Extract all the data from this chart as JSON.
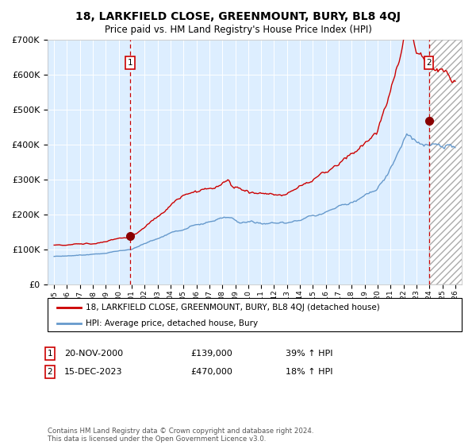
{
  "title": "18, LARKFIELD CLOSE, GREENMOUNT, BURY, BL8 4QJ",
  "subtitle": "Price paid vs. HM Land Registry's House Price Index (HPI)",
  "legend_line1": "18, LARKFIELD CLOSE, GREENMOUNT, BURY, BL8 4QJ (detached house)",
  "legend_line2": "HPI: Average price, detached house, Bury",
  "marker1_date": "20-NOV-2000",
  "marker1_price": 139000,
  "marker1_label": "39% ↑ HPI",
  "marker2_date": "15-DEC-2023",
  "marker2_price": 470000,
  "marker2_label": "18% ↑ HPI",
  "footer": "Contains HM Land Registry data © Crown copyright and database right 2024.\nThis data is licensed under the Open Government Licence v3.0.",
  "background_color": "#ddeeff",
  "red_line_color": "#cc0000",
  "blue_line_color": "#6699cc",
  "marker_color": "#880000",
  "ylim": [
    0,
    700000
  ],
  "yticks": [
    0,
    100000,
    200000,
    300000,
    400000,
    500000,
    600000,
    700000
  ],
  "ytick_labels": [
    "£0",
    "£100K",
    "£200K",
    "£300K",
    "£400K",
    "£500K",
    "£600K",
    "£700K"
  ],
  "marker1_x": 2000.88,
  "marker2_x": 2023.96,
  "xlim_left": 1994.5,
  "xlim_right": 2026.5,
  "hatch_start": 2024.0
}
